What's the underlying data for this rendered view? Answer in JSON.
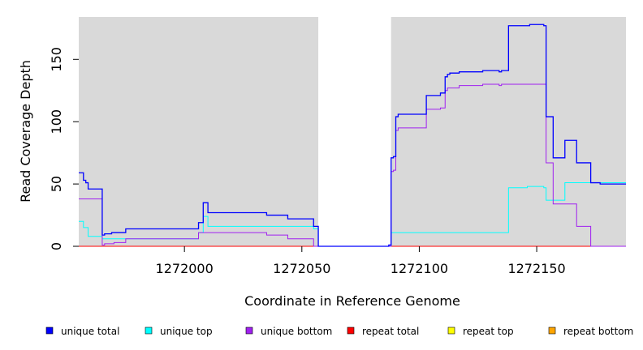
{
  "chart_data": {
    "type": "line",
    "xlabel": "Coordinate in Reference Genome",
    "ylabel": "Read Coverage Depth",
    "xlim": [
      1271955,
      1272188
    ],
    "ylim": [
      0,
      184
    ],
    "x_ticks": [
      1272000,
      1272050,
      1272100,
      1272150
    ],
    "x_tick_labels": [
      "1272000",
      "1272050",
      "1272100",
      "1272150"
    ],
    "y_ticks": [
      0,
      50,
      100,
      150
    ],
    "y_tick_labels": [
      "0",
      "50",
      "100",
      "150"
    ],
    "background": "#d9d9d9",
    "gap_region": [
      1272057,
      1272088
    ],
    "gap_color": "#ffffff",
    "grid": false,
    "legend_position": "bottom",
    "series": [
      {
        "name": "unique total",
        "color": "#0000ff",
        "points": [
          [
            1271955,
            59
          ],
          [
            1271957,
            59
          ],
          [
            1271957,
            53
          ],
          [
            1271958,
            53
          ],
          [
            1271958,
            51
          ],
          [
            1271959,
            51
          ],
          [
            1271959,
            46
          ],
          [
            1271965,
            46
          ],
          [
            1271965,
            9
          ],
          [
            1271966,
            9
          ],
          [
            1271966,
            10
          ],
          [
            1271969,
            10
          ],
          [
            1271969,
            11
          ],
          [
            1271975,
            11
          ],
          [
            1271975,
            14
          ],
          [
            1272006,
            14
          ],
          [
            1272006,
            19
          ],
          [
            1272008,
            19
          ],
          [
            1272008,
            35
          ],
          [
            1272010,
            35
          ],
          [
            1272010,
            27
          ],
          [
            1272035,
            27
          ],
          [
            1272035,
            25
          ],
          [
            1272044,
            25
          ],
          [
            1272044,
            22
          ],
          [
            1272055,
            22
          ],
          [
            1272055,
            16
          ],
          [
            1272057,
            16
          ],
          [
            1272057,
            0
          ],
          [
            1272087,
            0
          ],
          [
            1272087,
            1
          ],
          [
            1272088,
            1
          ],
          [
            1272088,
            71
          ],
          [
            1272089,
            71
          ],
          [
            1272089,
            72
          ],
          [
            1272090,
            72
          ],
          [
            1272090,
            104
          ],
          [
            1272091,
            104
          ],
          [
            1272091,
            106
          ],
          [
            1272103,
            106
          ],
          [
            1272103,
            121
          ],
          [
            1272109,
            121
          ],
          [
            1272109,
            123
          ],
          [
            1272111,
            123
          ],
          [
            1272111,
            136
          ],
          [
            1272112,
            136
          ],
          [
            1272112,
            138
          ],
          [
            1272113,
            138
          ],
          [
            1272113,
            139
          ],
          [
            1272117,
            139
          ],
          [
            1272117,
            140
          ],
          [
            1272127,
            140
          ],
          [
            1272127,
            141
          ],
          [
            1272134,
            141
          ],
          [
            1272134,
            140
          ],
          [
            1272135,
            140
          ],
          [
            1272135,
            141
          ],
          [
            1272138,
            141
          ],
          [
            1272138,
            177
          ],
          [
            1272147,
            177
          ],
          [
            1272147,
            178
          ],
          [
            1272153,
            178
          ],
          [
            1272153,
            177
          ],
          [
            1272154,
            177
          ],
          [
            1272154,
            104
          ],
          [
            1272157,
            104
          ],
          [
            1272157,
            71
          ],
          [
            1272162,
            71
          ],
          [
            1272162,
            85
          ],
          [
            1272167,
            85
          ],
          [
            1272167,
            67
          ],
          [
            1272173,
            67
          ],
          [
            1272173,
            51
          ],
          [
            1272177,
            51
          ],
          [
            1272177,
            50
          ],
          [
            1272188,
            50
          ]
        ]
      },
      {
        "name": "unique top",
        "color": "#00ffff",
        "points": [
          [
            1271955,
            20
          ],
          [
            1271957,
            20
          ],
          [
            1271957,
            15
          ],
          [
            1271959,
            15
          ],
          [
            1271959,
            8
          ],
          [
            1271965,
            8
          ],
          [
            1271965,
            6
          ],
          [
            1272006,
            6
          ],
          [
            1272006,
            11
          ],
          [
            1272008,
            11
          ],
          [
            1272008,
            24
          ],
          [
            1272010,
            24
          ],
          [
            1272010,
            16
          ],
          [
            1272055,
            16
          ],
          [
            1272055,
            14
          ],
          [
            1272057,
            14
          ],
          [
            1272057,
            0
          ],
          [
            1272088,
            0
          ],
          [
            1272088,
            11
          ],
          [
            1272138,
            11
          ],
          [
            1272138,
            47
          ],
          [
            1272146,
            47
          ],
          [
            1272146,
            48
          ],
          [
            1272153,
            48
          ],
          [
            1272153,
            47
          ],
          [
            1272154,
            47
          ],
          [
            1272154,
            37
          ],
          [
            1272162,
            37
          ],
          [
            1272162,
            51
          ],
          [
            1272188,
            51
          ]
        ]
      },
      {
        "name": "unique bottom",
        "color": "#a020f0",
        "points": [
          [
            1271955,
            38
          ],
          [
            1271965,
            38
          ],
          [
            1271965,
            1
          ],
          [
            1271966,
            1
          ],
          [
            1271966,
            2
          ],
          [
            1271970,
            2
          ],
          [
            1271970,
            3
          ],
          [
            1271975,
            3
          ],
          [
            1271975,
            6
          ],
          [
            1272006,
            6
          ],
          [
            1272006,
            11
          ],
          [
            1272010,
            11
          ],
          [
            1272010,
            11
          ],
          [
            1272035,
            11
          ],
          [
            1272035,
            9
          ],
          [
            1272044,
            9
          ],
          [
            1272044,
            6
          ],
          [
            1272055,
            6
          ],
          [
            1272055,
            0
          ],
          [
            1272088,
            0
          ],
          [
            1272088,
            60
          ],
          [
            1272089,
            60
          ],
          [
            1272089,
            61
          ],
          [
            1272090,
            61
          ],
          [
            1272090,
            93
          ],
          [
            1272091,
            93
          ],
          [
            1272091,
            95
          ],
          [
            1272103,
            95
          ],
          [
            1272103,
            110
          ],
          [
            1272109,
            110
          ],
          [
            1272109,
            111
          ],
          [
            1272111,
            111
          ],
          [
            1272111,
            125
          ],
          [
            1272112,
            125
          ],
          [
            1272112,
            127
          ],
          [
            1272117,
            127
          ],
          [
            1272117,
            129
          ],
          [
            1272127,
            129
          ],
          [
            1272127,
            130
          ],
          [
            1272134,
            130
          ],
          [
            1272134,
            129
          ],
          [
            1272135,
            129
          ],
          [
            1272135,
            130
          ],
          [
            1272154,
            130
          ],
          [
            1272154,
            67
          ],
          [
            1272157,
            67
          ],
          [
            1272157,
            34
          ],
          [
            1272167,
            34
          ],
          [
            1272167,
            16
          ],
          [
            1272173,
            16
          ],
          [
            1272173,
            0
          ],
          [
            1272188,
            0
          ]
        ]
      },
      {
        "name": "repeat total",
        "color": "#ff0000",
        "points": [
          [
            1271955,
            0
          ],
          [
            1272188,
            0
          ]
        ]
      },
      {
        "name": "repeat top",
        "color": "#ffff00",
        "points": [
          [
            1271955,
            0
          ],
          [
            1272188,
            0
          ]
        ]
      },
      {
        "name": "repeat bottom",
        "color": "#ffa500",
        "points": [
          [
            1271955,
            0
          ],
          [
            1272188,
            0
          ]
        ]
      }
    ]
  }
}
